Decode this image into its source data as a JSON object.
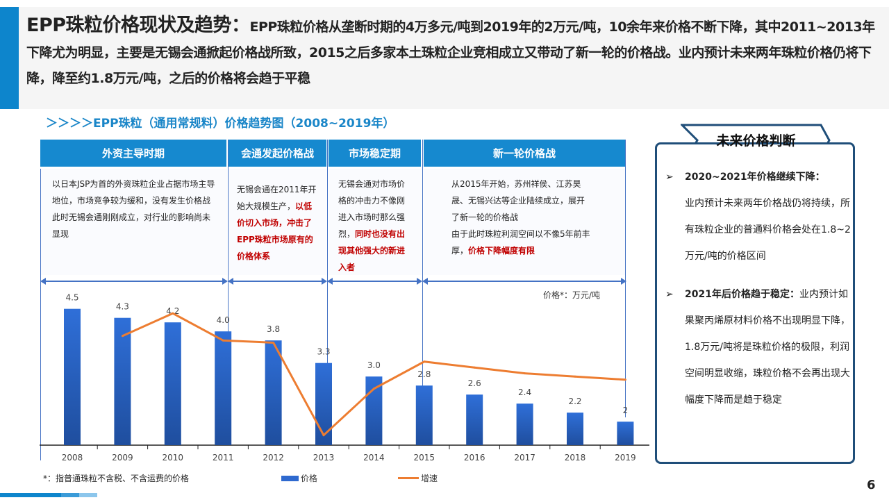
{
  "header": {
    "title": "EPP珠粒价格现状及趋势：",
    "body": "EPP珠粒价格从垄断时期的4万多元/吨到2019年的2万元/吨，10余年来价格不断下降，其中2011~2013年下降尤为明显，主要是无锡会通掀起价格战所致，2015之后多家本土珠粒企业竞相成立又带动了新一轮的价格战。业内预计未来两年珠粒价格仍将下降，降至约1.8万元/吨，之后的价格将会趋于平稳"
  },
  "subtitle": "＞＞＞＞EPP珠粒（通用常规料）价格趋势图（2008~2019年）",
  "phases": [
    {
      "title": "外资主导时期",
      "text": "以日本JSP为首的外资珠粒企业占据市场主导地位，市场竞争较为缓和，没有发生价格战",
      "text2": "此时无锡会通刚刚成立，对行业的影响尚未显现",
      "highlight": ""
    },
    {
      "title": "会通发起价格战",
      "text": "无锡会通在2011年开始大规模生产，",
      "highlight": "以低价切入市场，冲击了EPP珠粒市场原有的价格体系"
    },
    {
      "title": "市场稳定期",
      "text": "无锡会通对市场价格的冲击力不像刚进入市场时那么强烈，",
      "highlight": "同时也没有出现其他强大的新进入者"
    },
    {
      "title": "新一轮价格战",
      "text": "从2015年开始，苏州祥侯、江苏昊晟、无锡兴达等企业陆续成立，展开了新一轮的价格战",
      "text2": "由于此时珠粒利润空间以不像5年前丰厚，",
      "highlight": "价格下降幅度有限"
    }
  ],
  "unit_label": "价格*：万元/吨",
  "footnote": "*：指普通珠粒不含税、不含运费的价格",
  "chart_data": {
    "type": "bar+line",
    "categories": [
      "2008",
      "2009",
      "2010",
      "2011",
      "2012",
      "2013",
      "2014",
      "2015",
      "2016",
      "2017",
      "2018",
      "2019"
    ],
    "series": [
      {
        "name": "价格",
        "type": "bar",
        "values": [
          4.5,
          4.3,
          4.2,
          4.0,
          3.8,
          3.3,
          3.0,
          2.8,
          2.6,
          2.4,
          2.2,
          2
        ],
        "labels": [
          "4.5",
          "4.3",
          "4.2",
          "4.0",
          "3.8",
          "3.3",
          "3.0",
          "2.8",
          "2.6",
          "2.4",
          "2.2",
          "2"
        ],
        "color": "#2e69cf"
      },
      {
        "name": "增速",
        "type": "line",
        "values": [
          null,
          3.9,
          4.4,
          3.8,
          3.75,
          1.7,
          2.73,
          3.33,
          3.2,
          3.07,
          3.0,
          2.93
        ],
        "color": "#ed7d31"
      }
    ],
    "legend": "bottom",
    "grid": false,
    "y_axis_visible": false
  },
  "right_panel": {
    "title": "未来价格判断",
    "items": [
      {
        "bold": "2020~2021年价格继续下降：",
        "text": "业内预计未来两年价格战仍将持续，所有珠粒企业的普通料价格会处在1.8~2万元/吨的价格区间"
      },
      {
        "bold": "2021年后价格趋于稳定：",
        "text": "业内预计如果聚丙烯原材料价格不出现明显下降，1.8万元/吨将是珠粒价格的极限，利润空间明显收缩，珠粒价格不会再出现大幅度下降而是趋于稳定"
      }
    ]
  },
  "page_number": "6"
}
